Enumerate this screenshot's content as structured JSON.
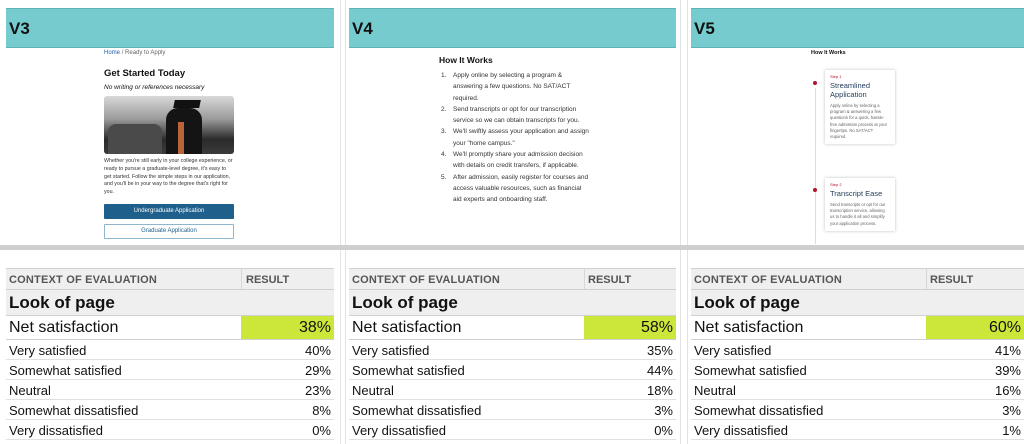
{
  "columns": [
    {
      "version": "V3",
      "preview": {
        "breadcrumb_home": "Home",
        "breadcrumb_sep": "/",
        "breadcrumb_current": "Ready to Apply",
        "title": "Get Started Today",
        "subtitle": "No writing or references necessary",
        "body": "Whether you're still early in your college experience, or ready to pursue a graduate-level degree, it's easy to get started. Follow the simple steps in our application, and you'll be in your way to the degree that's right for you.",
        "button_primary": "Undergraduate Application",
        "button_secondary": "Graduate Application"
      },
      "table": {
        "header_context": "CONTEXT OF EVALUATION",
        "header_result": "RESULT",
        "section": "Look of page",
        "net_label": "Net satisfaction",
        "net_value": "38%",
        "rows": [
          {
            "label": "Very satisfied",
            "value": "40%"
          },
          {
            "label": "Somewhat satisfied",
            "value": "29%"
          },
          {
            "label": "Neutral",
            "value": "23%"
          },
          {
            "label": "Somewhat dissatisfied",
            "value": "8%"
          },
          {
            "label": "Very dissatisfied",
            "value": "0%"
          }
        ]
      }
    },
    {
      "version": "V4",
      "preview": {
        "title": "How It Works",
        "steps": [
          {
            "num": "1.",
            "text": "Apply online by selecting a program & answering a few questions. No SAT/ACT required."
          },
          {
            "num": "2.",
            "text": "Send transcripts or opt for our transcription service so we can obtain transcripts for you."
          },
          {
            "num": "3.",
            "text": "We'll swiftly assess your application and assign your \"home campus.\""
          },
          {
            "num": "4.",
            "text": "We'll promptly share your admission decision with details on credit transfers, if applicable."
          },
          {
            "num": "5.",
            "text": "After admission, easily register for courses and access valuable resources, such as financial aid experts and onboarding staff."
          }
        ]
      },
      "table": {
        "header_context": "CONTEXT OF EVALUATION",
        "header_result": "RESULT",
        "section": "Look of page",
        "net_label": "Net satisfaction",
        "net_value": "58%",
        "rows": [
          {
            "label": "Very satisfied",
            "value": "35%"
          },
          {
            "label": "Somewhat satisfied",
            "value": "44%"
          },
          {
            "label": "Neutral",
            "value": "18%"
          },
          {
            "label": "Somewhat dissatisfied",
            "value": "3%"
          },
          {
            "label": "Very dissatisfied",
            "value": "0%"
          }
        ]
      }
    },
    {
      "version": "V5",
      "preview": {
        "title": "How It Works",
        "cards": [
          {
            "step": "Step 1",
            "title": "Streamlined Application",
            "body": "Apply online by selecting a program & answering a few questions for a quick, hassle-free admission process at your fingertips. No SAT/ACT required."
          },
          {
            "step": "Step 2",
            "title": "Transcript Ease",
            "body": "Send transcripts or opt for our transcription service, allowing us to handle it all and simplify your application process."
          }
        ]
      },
      "table": {
        "header_context": "CONTEXT OF EVALUATION",
        "header_result": "RESULT",
        "section": "Look of page",
        "net_label": "Net satisfaction",
        "net_value": "60%",
        "rows": [
          {
            "label": "Very satisfied",
            "value": "41%"
          },
          {
            "label": "Somewhat satisfied",
            "value": "39%"
          },
          {
            "label": "Neutral",
            "value": "16%"
          },
          {
            "label": "Somewhat dissatisfied",
            "value": "3%"
          },
          {
            "label": "Very dissatisfied",
            "value": "1%"
          }
        ]
      }
    }
  ],
  "colors": {
    "header_bg": "#76cbcf",
    "net_highlight": "#cde63a",
    "primary_button": "#1f5f8b",
    "step_accent": "#b5132a"
  }
}
